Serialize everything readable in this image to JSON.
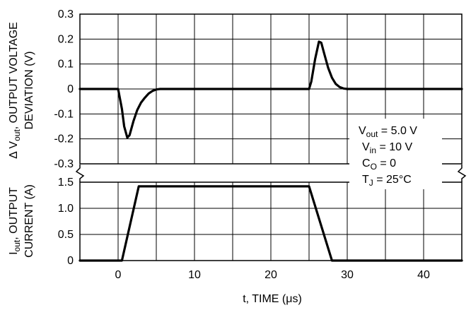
{
  "chart_data": {
    "type": "line",
    "xlabel": "t, TIME (μs)",
    "xlim": [
      -5,
      45
    ],
    "x_ticks": [
      0,
      10,
      20,
      30,
      40
    ],
    "panels": [
      {
        "name": "voltage",
        "ylabel_line1": "Δ V",
        "ylabel_sub": "out",
        "ylabel_rest": ", OUTPUT VOLTAGE",
        "ylabel_line2": "DEVIATION (V)",
        "ylim": [
          -0.3,
          0.3
        ],
        "y_ticks": [
          0.3,
          0.2,
          0.1,
          0,
          -0.1,
          -0.2,
          -0.3
        ],
        "y_tick_labels": [
          "0.3",
          "0.2",
          "0.1",
          "0",
          "-0.1",
          "-0.2",
          "-0.3"
        ],
        "series": [
          {
            "x": [
              -5,
              0,
              0.5,
              0.8,
              1.2,
              1.5,
              2,
              2.5,
              3,
              3.5,
              4,
              4.5,
              5,
              5.5,
              25,
              25.3,
              25.8,
              26.3,
              26.6,
              27,
              27.5,
              28,
              28.5,
              29,
              29.5,
              30,
              45
            ],
            "y": [
              0,
              0,
              -0.08,
              -0.15,
              -0.195,
              -0.185,
              -0.13,
              -0.085,
              -0.055,
              -0.035,
              -0.018,
              -0.008,
              -0.002,
              0,
              0,
              0.03,
              0.12,
              0.19,
              0.185,
              0.14,
              0.085,
              0.045,
              0.02,
              0.008,
              0.002,
              0,
              0
            ]
          }
        ]
      },
      {
        "name": "current",
        "ylabel_pre": "I",
        "ylabel_sub": "out",
        "ylabel_rest": ", OUTPUT",
        "ylabel_line2": "CURRENT (A)",
        "ylim": [
          0,
          1.5
        ],
        "y_ticks": [
          1.5,
          1.0,
          0.5,
          0
        ],
        "y_tick_labels": [
          "1.5",
          "1.0",
          "0.5",
          "0"
        ],
        "series": [
          {
            "x": [
              -5,
              0.5,
              2.7,
              25,
              28,
              45
            ],
            "y": [
              0,
              0,
              1.42,
              1.42,
              0,
              0
            ]
          }
        ]
      }
    ],
    "annotations": [
      {
        "main": "V",
        "sub": "out",
        "rest": " = 5.0 V"
      },
      {
        "main": "V",
        "sub": "in",
        "rest": " = 10 V"
      },
      {
        "main": "C",
        "sub": "O",
        "rest": " = 0"
      },
      {
        "main": "T",
        "sub": "J",
        "rest": " = 25°C"
      }
    ]
  }
}
